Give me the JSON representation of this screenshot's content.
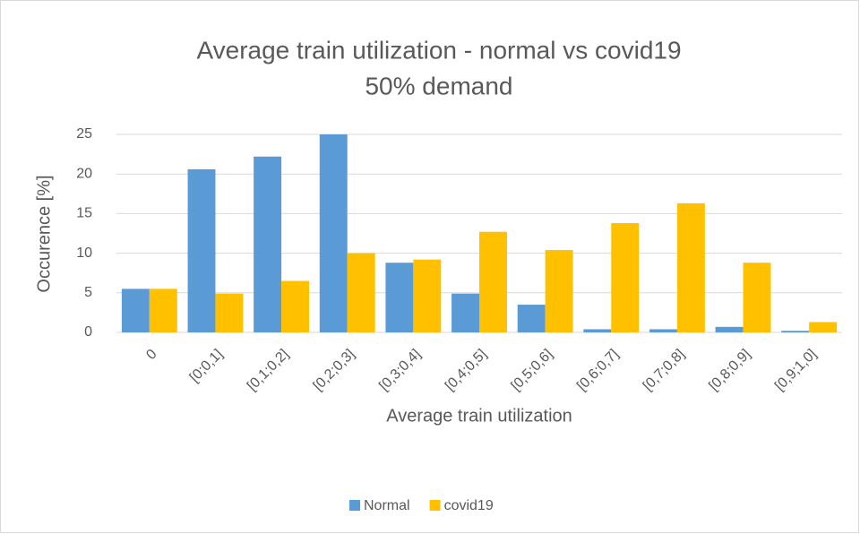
{
  "chart_data": {
    "type": "bar",
    "title": "Average train utilization - normal vs covid19",
    "subtitle": "50% demand",
    "x_label": "Average train utilization",
    "y_label": "Occurence [%]",
    "categories": [
      "0",
      "[0;0,1]",
      "[0,1;0,2]",
      "[0,2;0,3]",
      "[0,3;0,4]",
      "[0,4;0,5]",
      "[0,5;0,6]",
      "[0,6;0,7]",
      "[0,7;0,8]",
      "[0,8;0,9]",
      "[0,9;1,0]"
    ],
    "series": [
      {
        "name": "Normal",
        "color": "#5b9bd5",
        "values": [
          5.5,
          20.6,
          22.2,
          25.0,
          8.8,
          4.9,
          3.5,
          0.4,
          0.4,
          0.7,
          0.2
        ]
      },
      {
        "name": "covid19",
        "color": "#ffc000",
        "values": [
          5.5,
          4.9,
          6.5,
          10.0,
          9.2,
          12.7,
          10.4,
          13.8,
          16.3,
          8.8,
          1.3
        ]
      }
    ],
    "ylim": [
      0,
      25
    ],
    "yticks": [
      0,
      5,
      10,
      15,
      20,
      25
    ],
    "grid": true,
    "legend": "bottom"
  }
}
